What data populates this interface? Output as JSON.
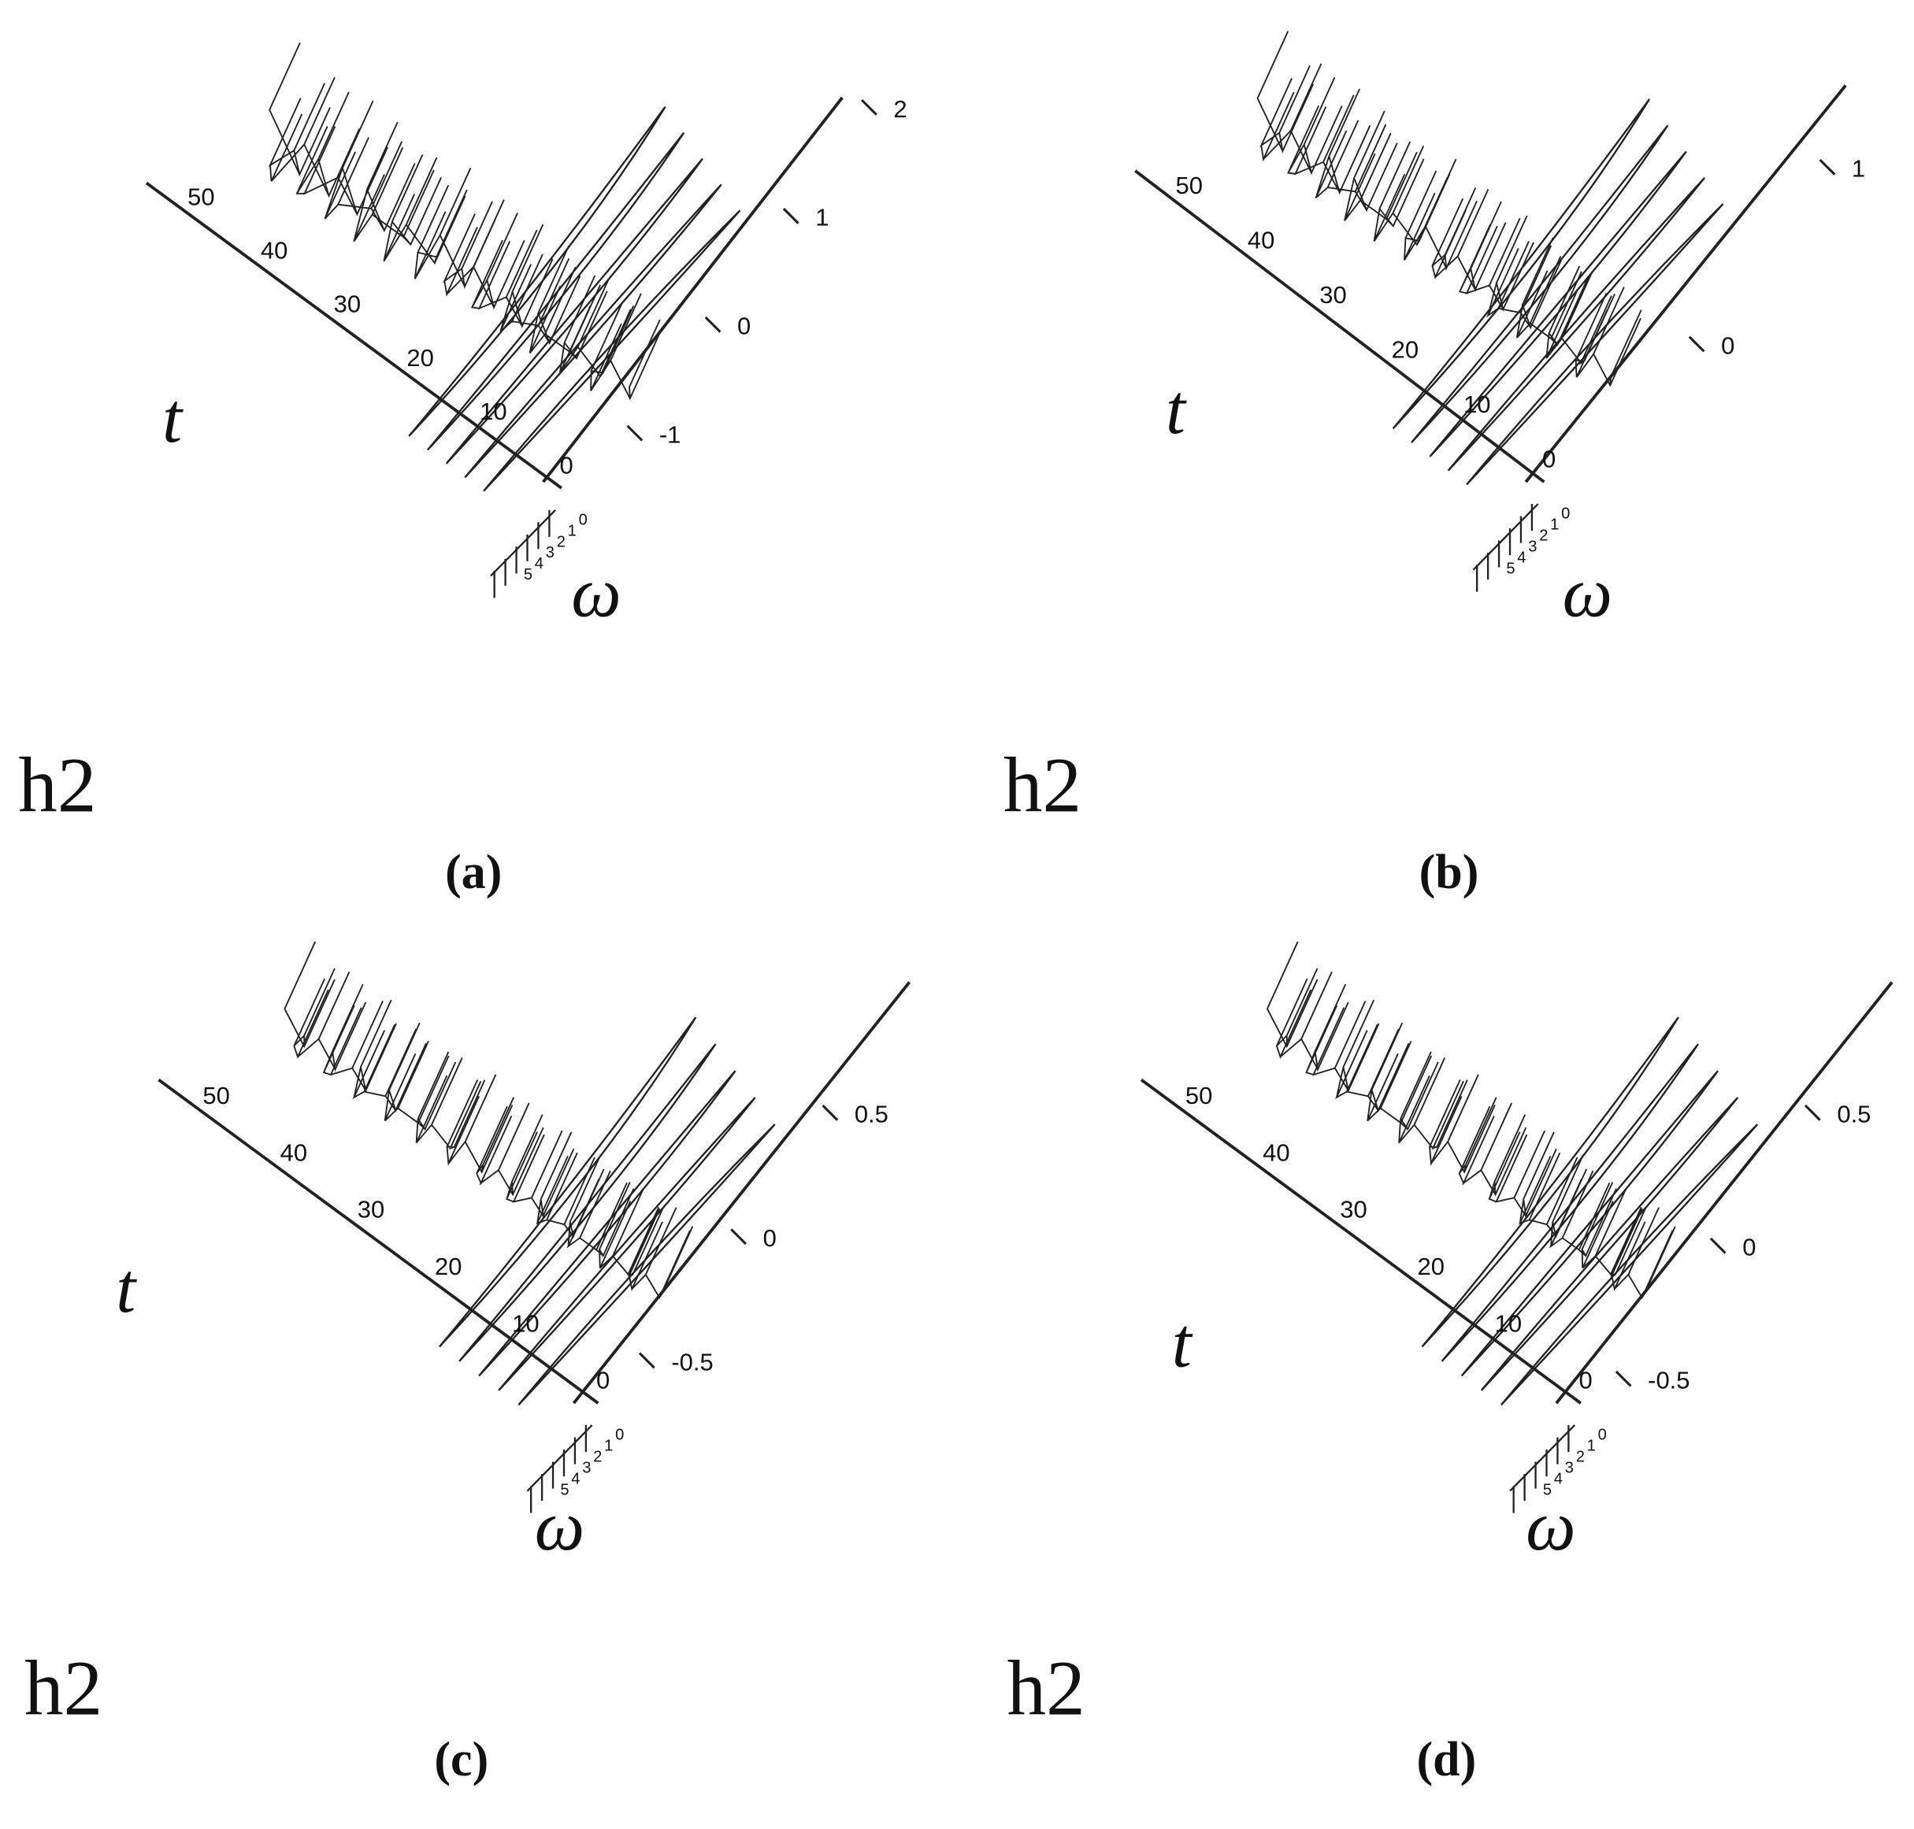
{
  "panels": [
    {
      "label": "(a)",
      "z_label": "h2",
      "t_label": "t",
      "w_label": "ω",
      "t_ticks": [
        "50",
        "40",
        "30",
        "20",
        "10",
        "0"
      ],
      "z_ticks": [
        "2",
        "1",
        "0",
        "-1"
      ],
      "w_ticks": [
        "0",
        "1",
        "2",
        "3",
        "4",
        "5"
      ]
    },
    {
      "label": "(b)",
      "z_label": "h2",
      "t_label": "t",
      "w_label": "ω",
      "t_ticks": [
        "50",
        "40",
        "30",
        "20",
        "10",
        "0"
      ],
      "z_ticks": [
        "1",
        "0"
      ],
      "w_ticks": [
        "0",
        "1",
        "2",
        "3",
        "4",
        "5"
      ]
    },
    {
      "label": "(c)",
      "z_label": "h2",
      "t_label": "t",
      "w_label": "ω",
      "t_ticks": [
        "50",
        "40",
        "30",
        "20",
        "10",
        "0"
      ],
      "z_ticks": [
        "0.5",
        "0",
        "-0.5"
      ],
      "w_ticks": [
        "0",
        "1",
        "2",
        "3",
        "4",
        "5"
      ]
    },
    {
      "label": "(d)",
      "z_label": "h2",
      "t_label": "t",
      "w_label": "ω",
      "t_ticks": [
        "50",
        "40",
        "30",
        "20",
        "10",
        "0"
      ],
      "z_ticks": [
        "0.5",
        "0",
        "-0.5"
      ],
      "w_ticks": [
        "0",
        "1",
        "2",
        "3",
        "4",
        "5"
      ]
    }
  ]
}
